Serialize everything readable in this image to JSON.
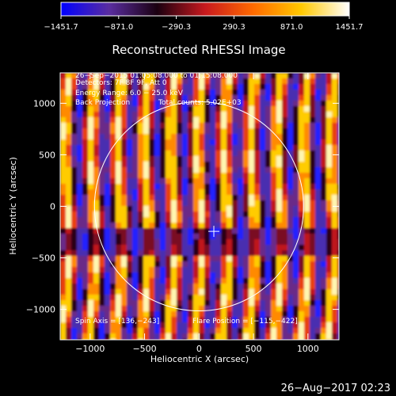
{
  "colorbar": {
    "tick_labels": [
      "−1451.7",
      "−871.0",
      "−290.3",
      "290.3",
      "871.0",
      "1451.7"
    ],
    "range": [
      -1451.7,
      1451.7
    ],
    "colors": [
      "#0000ff",
      "#5a2da0",
      "#1a0010",
      "#c8191e",
      "#ff6a00",
      "#ffc800",
      "#ffffff"
    ]
  },
  "chart_data": {
    "type": "heatmap",
    "title": "Reconstructed RHESSI Image",
    "xlabel": "Heliocentric X (arcsec)",
    "ylabel": "Heliocentric Y (arcsec)",
    "xlim": [
      -1275,
      1285
    ],
    "ylim": [
      -1295,
      1295
    ],
    "x_ticks": [
      -1000,
      -500,
      0,
      500,
      1000
    ],
    "x_tick_labels": [
      "−1000",
      "−500",
      "0",
      "500",
      "1000"
    ],
    "y_ticks": [
      1000,
      500,
      0,
      -500,
      -1000
    ],
    "y_tick_labels": [
      "1000",
      "500",
      "0",
      "−500",
      "−1000"
    ],
    "annotations": [
      "26−Sep−2015 01:05:08.000 to 01:15:08.000",
      "Detectors: 7F 8F 9F, Att 0",
      "Energy Range: 6.0 − 25.0 keV",
      "Back Projection",
      "Total counts: 5.02E+03"
    ],
    "spin_axis_label": "Spin Axis = [136,−243]",
    "flare_position_label": "Flare Position = [−115,−422]",
    "flare_position": [
      -115,
      -422
    ],
    "spin_axis": [
      136,
      -243
    ],
    "solar_limb": {
      "center": [
        0,
        0
      ],
      "radius_arcsec": 960
    },
    "cross_marker": [
      136,
      -243
    ]
  },
  "footer": {
    "timestamp": "26−Aug−2017 02:23"
  }
}
